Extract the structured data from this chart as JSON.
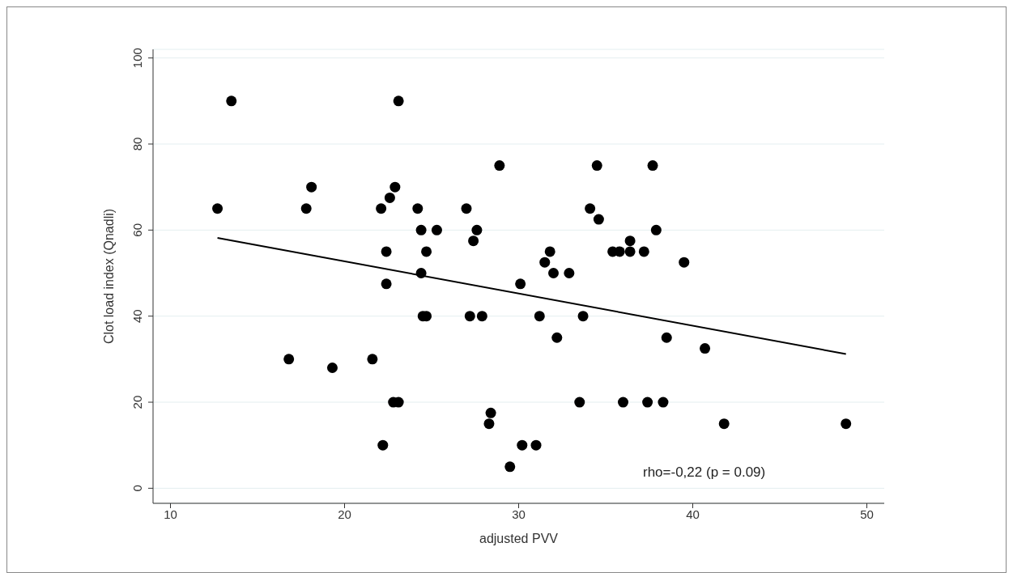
{
  "chart_data": {
    "type": "scatter",
    "xlabel": "adjusted PVV",
    "ylabel": "Clot load index (Qnadli)",
    "annotations": [
      "rho=-0,22 (p = 0.09)"
    ],
    "xlim": [
      9,
      51
    ],
    "xticks": [
      10,
      20,
      30,
      40,
      50
    ],
    "ylim": [
      -3.5,
      102
    ],
    "yticks": [
      0,
      20,
      40,
      60,
      80,
      100
    ],
    "grid": "y",
    "legend": false,
    "marker": "circle",
    "series": [
      {
        "color": "#000000",
        "x": [
          12.7,
          13.5,
          16.8,
          17.8,
          18.1,
          19.3,
          21.6,
          22.1,
          22.2,
          22.4,
          22.4,
          22.6,
          22.8,
          22.9,
          23.1,
          23.1,
          24.2,
          24.4,
          24.4,
          24.5,
          24.7,
          24.7,
          25.3,
          27.0,
          27.2,
          27.4,
          27.6,
          27.9,
          28.3,
          28.4,
          28.9,
          29.5,
          30.1,
          30.2,
          31.0,
          31.2,
          31.5,
          31.8,
          32.0,
          32.2,
          32.9,
          33.5,
          33.7,
          34.1,
          34.5,
          34.6,
          35.4,
          35.8,
          36.0,
          36.4,
          36.4,
          37.2,
          37.4,
          37.7,
          37.9,
          38.3,
          38.5,
          39.5,
          40.7,
          41.8,
          48.8
        ],
        "values": [
          65,
          90,
          30,
          65,
          70,
          28,
          30,
          65,
          10,
          55,
          47.5,
          67.5,
          20,
          70,
          20,
          90,
          65,
          50,
          60,
          40,
          55,
          40,
          60,
          65,
          40,
          57.5,
          60,
          40,
          15,
          17.5,
          75,
          5,
          47.5,
          10,
          10,
          40,
          52.5,
          55,
          50,
          35,
          50,
          20,
          40,
          65,
          75,
          62.5,
          55,
          55,
          20,
          55,
          57.5,
          55,
          20,
          75,
          60,
          20,
          35,
          52.5,
          32.5,
          15,
          15
        ]
      },
      {
        "type": "line",
        "color": "#000000",
        "x": [
          12.7,
          48.8
        ],
        "values": [
          58.2,
          31.2
        ],
        "marker": "none",
        "line_style": "solid"
      }
    ]
  }
}
